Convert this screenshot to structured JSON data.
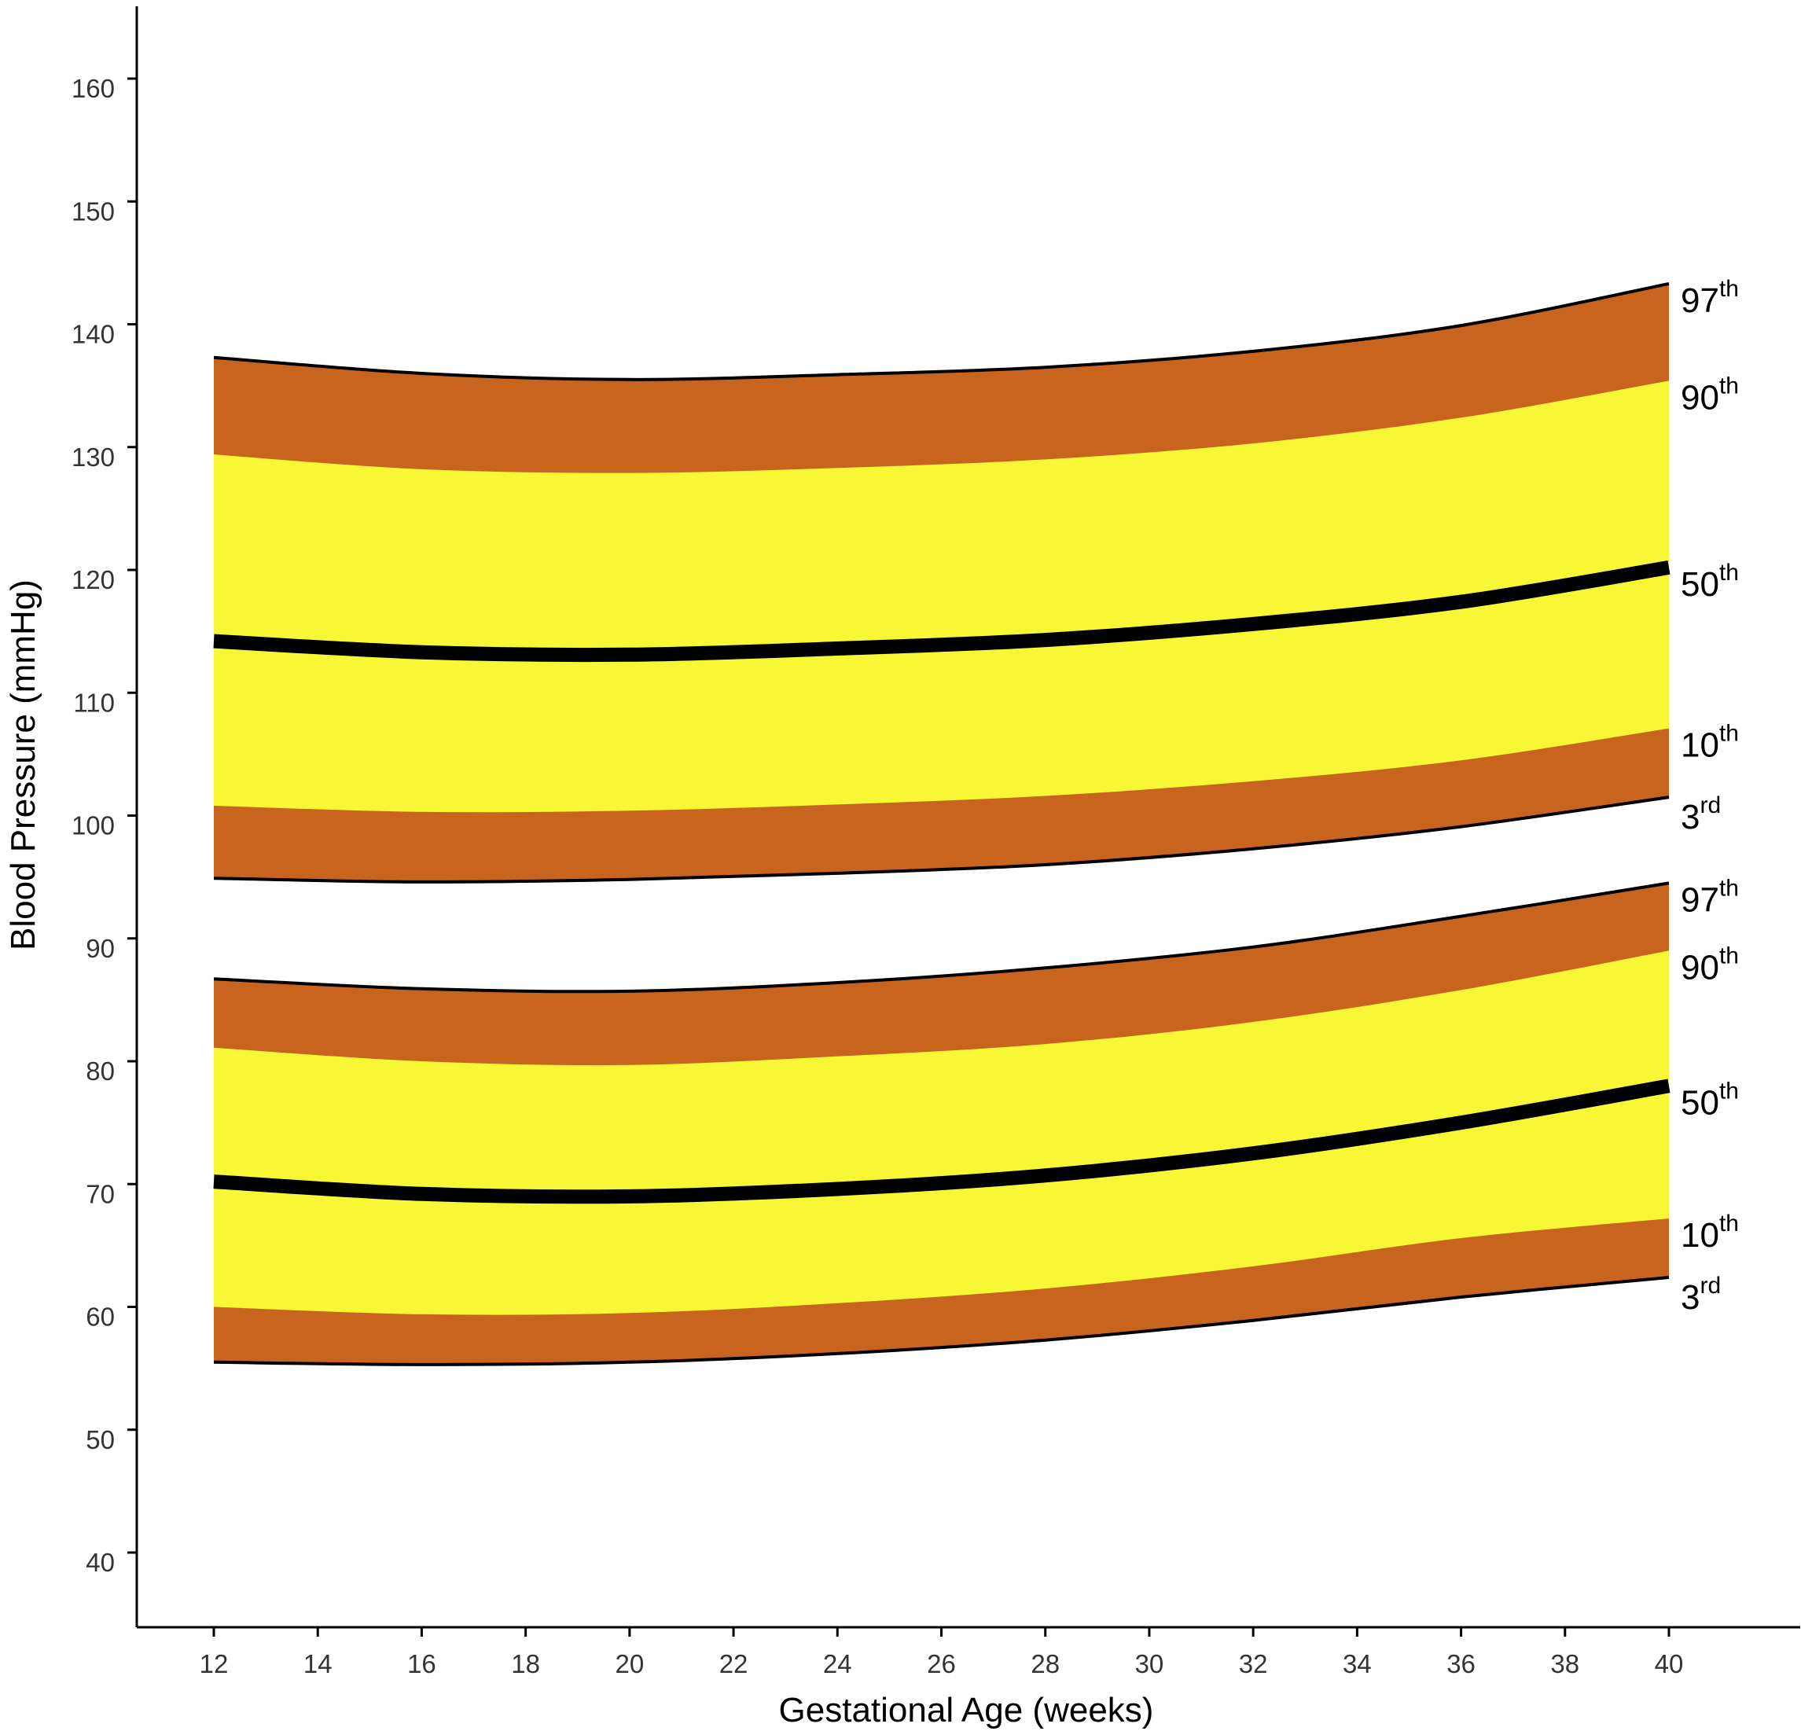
{
  "chart_data": {
    "type": "area",
    "xlabel": "Gestational Age (weeks)",
    "ylabel": "Blood Pressure (mmHg)",
    "xlim": [
      12,
      40
    ],
    "ylim": [
      40,
      160
    ],
    "x_ticks": [
      12,
      14,
      16,
      18,
      20,
      22,
      24,
      26,
      28,
      30,
      32,
      34,
      36,
      38,
      40
    ],
    "y_ticks": [
      40,
      50,
      60,
      70,
      80,
      90,
      100,
      110,
      120,
      130,
      140,
      150,
      160
    ],
    "grid": false,
    "colors": {
      "outer_band": "#C8641E",
      "inner_band": "#F7F736",
      "median_line": "#000000",
      "edge_line": "#000000"
    },
    "groups": [
      {
        "x": [
          12,
          16,
          20,
          24,
          28,
          32,
          36,
          40
        ],
        "series": [
          {
            "name": "97th",
            "values": [
              137.3,
              136.0,
              135.5,
              135.9,
              136.5,
              137.8,
              139.9,
              143.3
            ]
          },
          {
            "name": "90th",
            "values": [
              129.4,
              128.2,
              127.9,
              128.3,
              129.0,
              130.3,
              132.4,
              135.4
            ]
          },
          {
            "name": "50th",
            "values": [
              114.2,
              113.3,
              113.1,
              113.6,
              114.3,
              115.6,
              117.4,
              120.2
            ]
          },
          {
            "name": "10th",
            "values": [
              100.8,
              100.3,
              100.4,
              100.9,
              101.6,
              102.8,
              104.5,
              107.1
            ]
          },
          {
            "name": "3rd",
            "values": [
              94.9,
              94.6,
              94.8,
              95.3,
              96.0,
              97.3,
              99.1,
              101.5
            ]
          }
        ],
        "labels": [
          {
            "series": "97th",
            "num": "97",
            "sup": "th"
          },
          {
            "series": "90th",
            "num": "90",
            "sup": "th"
          },
          {
            "series": "50th",
            "num": "50",
            "sup": "th"
          },
          {
            "series": "10th",
            "num": "10",
            "sup": "th"
          },
          {
            "series": "3rd",
            "num": "3",
            "sup": "rd"
          }
        ]
      },
      {
        "x": [
          12,
          16,
          20,
          24,
          28,
          32,
          36,
          40
        ],
        "series": [
          {
            "name": "97th",
            "values": [
              86.7,
              85.9,
              85.7,
              86.4,
              87.6,
              89.3,
              91.8,
              94.5
            ]
          },
          {
            "name": "90th",
            "values": [
              81.1,
              80.0,
              79.7,
              80.4,
              81.4,
              83.2,
              85.8,
              89.0
            ]
          },
          {
            "name": "50th",
            "values": [
              70.2,
              69.2,
              69.0,
              69.6,
              70.7,
              72.5,
              75.0,
              78.0
            ]
          },
          {
            "name": "10th",
            "values": [
              60.0,
              59.4,
              59.5,
              60.3,
              61.5,
              63.3,
              65.6,
              67.2
            ]
          },
          {
            "name": "3rd",
            "values": [
              55.5,
              55.3,
              55.5,
              56.2,
              57.3,
              58.9,
              60.8,
              62.4
            ]
          }
        ],
        "labels": [
          {
            "series": "97th",
            "num": "97",
            "sup": "th"
          },
          {
            "series": "90th",
            "num": "90",
            "sup": "th"
          },
          {
            "series": "50th",
            "num": "50",
            "sup": "th"
          },
          {
            "series": "10th",
            "num": "10",
            "sup": "th"
          },
          {
            "series": "3rd",
            "num": "3",
            "sup": "rd"
          }
        ]
      }
    ]
  }
}
